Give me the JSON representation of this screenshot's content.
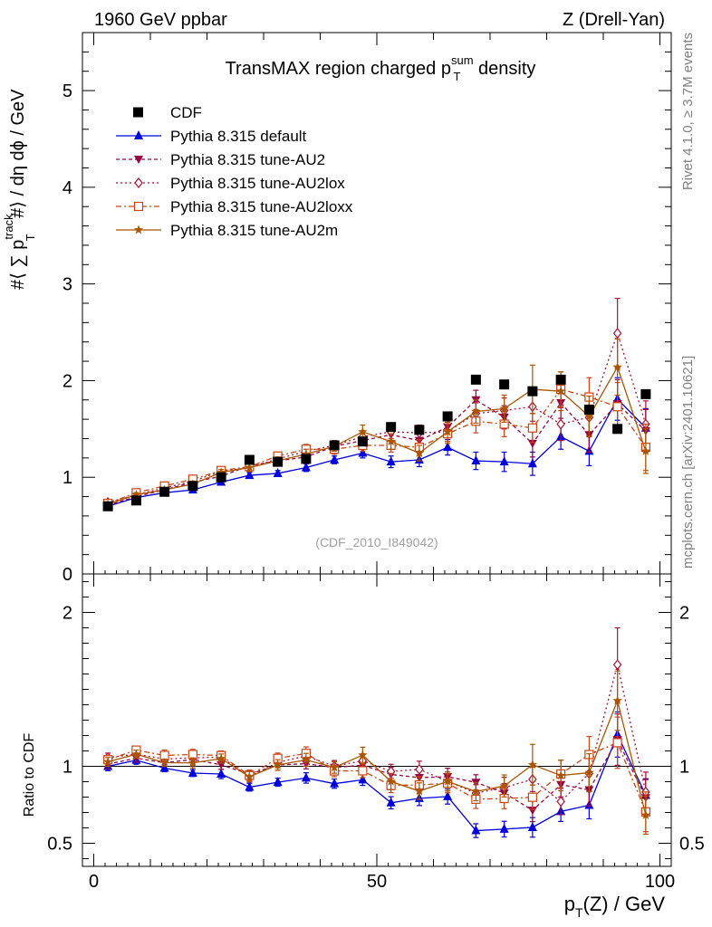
{
  "header": {
    "left": "1960 GeV ppbar",
    "right": "Z (Drell-Yan)",
    "title_main": "TransMAX region charged p",
    "title_sup": "sum",
    "title_sub": "T",
    "title_end": " density"
  },
  "side": {
    "rivet": "Rivet 4.1.0, ≥ 3.7M events",
    "mcplots": "mcplots.cern.ch [arXiv:2401.10621]"
  },
  "analysis_id": "(CDF_2010_I849042)",
  "upper_ylabel": {
    "prefix": "#⟨ ∑ p",
    "sup": "track",
    "sub": "T",
    "suffix": " #⟩ / dη dϕ / GeV"
  },
  "ratio_ylabel": "Ratio to CDF",
  "xlabel": {
    "p": "p",
    "sub": "T",
    "rest": "(Z) / GeV"
  },
  "colors": {
    "data": "#000000",
    "default": "#0000dd",
    "au2": "#990044",
    "au2lox": "#aa1133",
    "au2loxx": "#cc4411",
    "au2m": "#aa5500"
  },
  "chart_data": {
    "type": "line",
    "x": [
      2.5,
      7.5,
      12.5,
      17.5,
      22.5,
      27.5,
      32.5,
      37.5,
      42.5,
      47.5,
      52.5,
      57.5,
      62.5,
      67.5,
      72.5,
      77.5,
      82.5,
      87.5,
      92.5,
      97.5
    ],
    "xlim": [
      -2,
      102
    ],
    "ylim": [
      0,
      5.6
    ],
    "ratio_ylim": [
      0.35,
      2.25
    ],
    "x_ticks": [
      0,
      50,
      100
    ],
    "y_ticks": [
      0,
      1,
      2,
      3,
      4,
      5
    ],
    "ratio_ticks": [
      0.5,
      1,
      2
    ],
    "data": {
      "name": "CDF",
      "values": [
        0.7,
        0.76,
        0.85,
        0.91,
        1.0,
        1.18,
        1.16,
        1.19,
        1.33,
        1.37,
        1.52,
        1.49,
        1.63,
        2.01,
        1.96,
        1.89,
        2.01,
        1.7,
        1.5,
        1.86
      ]
    },
    "series": [
      {
        "name": "Pythia 8.315 default",
        "style": "default",
        "values": [
          0.7,
          0.79,
          0.84,
          0.87,
          0.95,
          1.02,
          1.04,
          1.1,
          1.18,
          1.25,
          1.16,
          1.18,
          1.31,
          1.17,
          1.16,
          1.14,
          1.42,
          1.27,
          1.81,
          1.51
        ],
        "errors": [
          0.02,
          0.02,
          0.02,
          0.02,
          0.03,
          0.03,
          0.03,
          0.04,
          0.04,
          0.05,
          0.06,
          0.07,
          0.08,
          0.09,
          0.1,
          0.12,
          0.13,
          0.15,
          0.22,
          0.2
        ]
      },
      {
        "name": "Pythia 8.315 tune-AU2",
        "style": "au2",
        "values": [
          0.71,
          0.8,
          0.87,
          0.95,
          1.01,
          1.12,
          1.17,
          1.21,
          1.32,
          1.38,
          1.44,
          1.38,
          1.52,
          1.8,
          1.62,
          1.35,
          1.77,
          1.44,
          1.76,
          1.48
        ],
        "errors": [
          0.02,
          0.02,
          0.02,
          0.03,
          0.03,
          0.03,
          0.04,
          0.04,
          0.05,
          0.06,
          0.07,
          0.08,
          0.09,
          0.1,
          0.12,
          0.14,
          0.16,
          0.18,
          0.25,
          0.22
        ]
      },
      {
        "name": "Pythia 8.315 tune-AU2lox",
        "style": "au2lox",
        "values": [
          0.74,
          0.82,
          0.89,
          0.96,
          1.06,
          1.1,
          1.19,
          1.27,
          1.33,
          1.42,
          1.47,
          1.46,
          1.47,
          1.66,
          1.69,
          1.73,
          1.55,
          1.62,
          2.49,
          1.55
        ],
        "errors": [
          0.02,
          0.02,
          0.02,
          0.03,
          0.03,
          0.04,
          0.04,
          0.05,
          0.05,
          0.06,
          0.07,
          0.08,
          0.1,
          0.11,
          0.13,
          0.15,
          0.17,
          0.19,
          0.36,
          0.24
        ]
      },
      {
        "name": "Pythia 8.315 tune-AU2loxx",
        "style": "au2loxx",
        "values": [
          0.73,
          0.84,
          0.91,
          0.98,
          1.07,
          1.11,
          1.22,
          1.29,
          1.29,
          1.33,
          1.33,
          1.31,
          1.45,
          1.58,
          1.55,
          1.51,
          1.91,
          1.83,
          1.73,
          1.31
        ],
        "errors": [
          0.02,
          0.02,
          0.03,
          0.03,
          0.03,
          0.04,
          0.04,
          0.05,
          0.05,
          0.06,
          0.07,
          0.08,
          0.1,
          0.12,
          0.13,
          0.15,
          0.18,
          0.2,
          0.25,
          0.24
        ]
      },
      {
        "name": "Pythia 8.315 tune-AU2m",
        "style": "au2m",
        "values": [
          0.72,
          0.82,
          0.87,
          0.93,
          1.05,
          1.1,
          1.17,
          1.24,
          1.32,
          1.47,
          1.37,
          1.25,
          1.47,
          1.68,
          1.71,
          1.91,
          1.89,
          1.63,
          2.14,
          1.27
        ],
        "errors": [
          0.02,
          0.02,
          0.02,
          0.03,
          0.03,
          0.04,
          0.04,
          0.05,
          0.05,
          0.07,
          0.08,
          0.08,
          0.1,
          0.12,
          0.14,
          0.25,
          0.2,
          0.21,
          0.29,
          0.23
        ]
      }
    ]
  }
}
